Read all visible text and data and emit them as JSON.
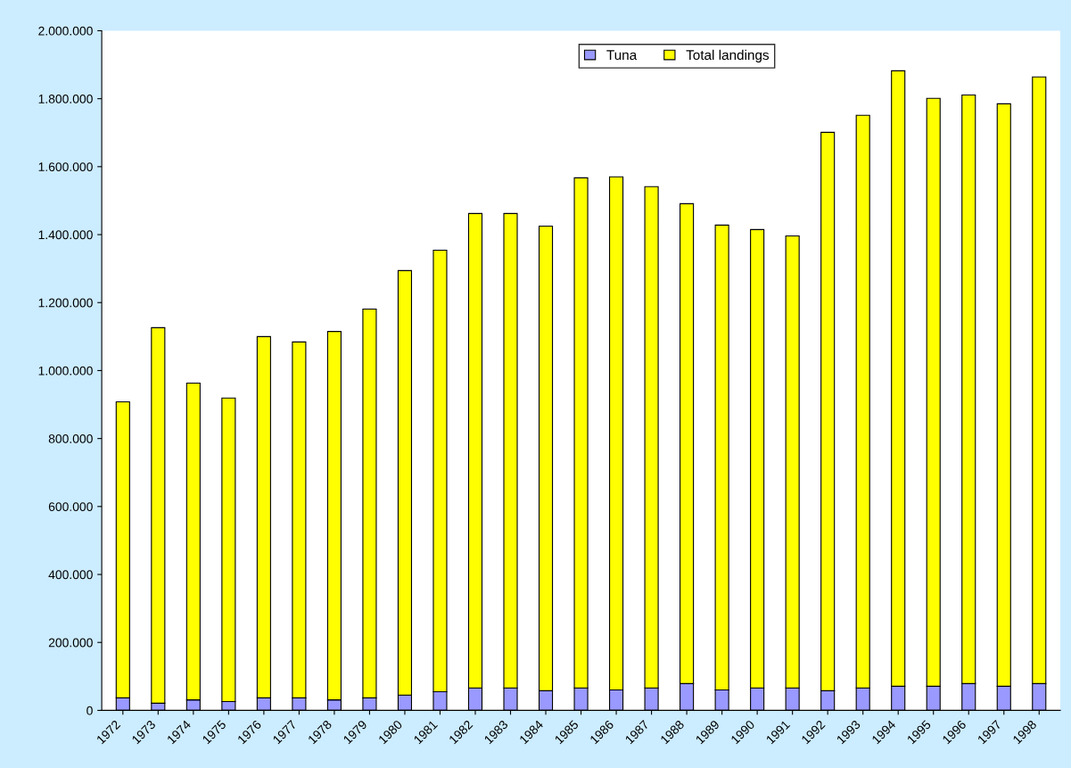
{
  "chart_data": {
    "type": "bar",
    "stacked": true,
    "categories": [
      "1972",
      "1973",
      "1974",
      "1975",
      "1976",
      "1977",
      "1978",
      "1979",
      "1980",
      "1981",
      "1982",
      "1983",
      "1984",
      "1985",
      "1986",
      "1987",
      "1988",
      "1989",
      "1990",
      "1991",
      "1992",
      "1993",
      "1994",
      "1995",
      "1996",
      "1997",
      "1998"
    ],
    "series": [
      {
        "name": "Tuna",
        "color": "#9999ff",
        "values": [
          37000,
          21000,
          31000,
          26000,
          37000,
          37000,
          31000,
          37000,
          45000,
          55000,
          66000,
          66000,
          58000,
          66000,
          60000,
          66000,
          79000,
          60000,
          66000,
          66000,
          58000,
          66000,
          71000,
          71000,
          79000,
          71000,
          79000
        ]
      },
      {
        "name": "Total landings",
        "color": "#ffff00",
        "values": [
          871000,
          1105000,
          932000,
          893000,
          1063000,
          1047000,
          1084000,
          1144000,
          1249000,
          1299000,
          1396000,
          1396000,
          1367000,
          1501000,
          1510000,
          1475000,
          1412000,
          1368000,
          1349000,
          1330000,
          1643000,
          1685000,
          1811000,
          1730000,
          1732000,
          1714000,
          1785000
        ]
      }
    ],
    "ylim": [
      0,
      2000000
    ],
    "yticks": [
      0,
      {
        "value": 200000,
        "label": "200.000"
      },
      {
        "value": 400000,
        "label": "400.000"
      },
      {
        "value": 600000,
        "label": "600.000"
      },
      {
        "value": 800000,
        "label": "800.000"
      },
      {
        "value": 1000000,
        "label": "1.000.000"
      },
      {
        "value": 1200000,
        "label": "1.200.000"
      },
      {
        "value": 1400000,
        "label": "1.400.000"
      },
      {
        "value": 1600000,
        "label": "1.600.000"
      },
      {
        "value": 1800000,
        "label": "1.800.000"
      },
      {
        "value": 2000000,
        "label": "2.000.000"
      }
    ],
    "legend": "top right",
    "grid": false
  }
}
